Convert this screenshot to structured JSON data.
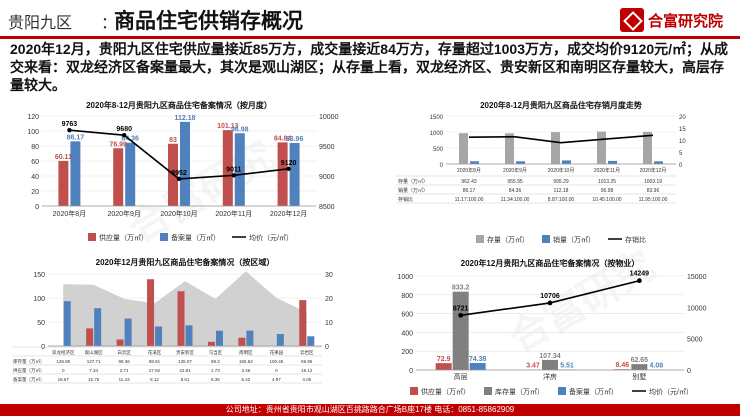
{
  "header": {
    "subtitle": "贵阳九区",
    "separator": "：",
    "title": "商品住宅供销存概况",
    "logo_text": "合富研究院"
  },
  "summary": "2020年12月，贵阳九区住宅供应量接近85万方，成交量接近84万方，存量超过1003万方，成交均价9120元/㎡；从成交来看：双龙经济区备案量最大，其次是观山湖区；从存量上看，双龙经济区、贵安新区和南明区存量较大，高层存量较大。",
  "footer": "公司地址：贵州省贵阳市观山湖区百挑路路合广场B座17楼 电话：0851-85862909",
  "watermark": "合富研究",
  "colors": {
    "red": "#c0504d",
    "blue": "#4f81bd",
    "gray": "#a6a6a6",
    "black": "#000000",
    "accent": "#c00000"
  },
  "chart_data": [
    {
      "type": "bar",
      "title": "2020年8-12月贵阳九区商品住宅备案情况（按月度）",
      "categories": [
        "2020年8月",
        "2020年9月",
        "2020年10月",
        "2020年11月",
        "2020年12月"
      ],
      "series": [
        {
          "name": "供应量（万㎡）",
          "values": [
            60.11,
            76.99,
            83,
            101.13,
            84.84
          ],
          "color": "#c0504d"
        },
        {
          "name": "备案量（万㎡）",
          "values": [
            86.17,
            84.36,
            112.18,
            96.98,
            83.96
          ],
          "color": "#4f81bd"
        },
        {
          "name": "均价（元/㎡）",
          "values": [
            9763,
            9680,
            8952,
            9011,
            9120
          ],
          "type": "line",
          "axis": "right",
          "color": "#000000"
        }
      ],
      "yticks_left": [
        "0",
        "20",
        "40",
        "60",
        "80",
        "100",
        "120"
      ],
      "yticks_right": [
        "8500",
        "9000",
        "9500",
        "10000"
      ],
      "ylim_left": [
        0,
        120
      ],
      "ylim_right": [
        8500,
        10000
      ]
    },
    {
      "type": "bar",
      "title": "2020年8-12月贵阳九区商品住宅存销月度走势",
      "categories": [
        "2020年8月",
        "2020年9月",
        "2020年10月",
        "2020年11月",
        "2020年12月"
      ],
      "series": [
        {
          "name": "存量（万㎡）",
          "values": [
            962.43,
            955.95,
            995.29,
            1013.25,
            1003.19
          ],
          "color": "#a6a6a6"
        },
        {
          "name": "销量（万㎡）",
          "values": [
            86.17,
            84.36,
            112.18,
            96.98,
            83.96
          ],
          "color": "#4f81bd"
        },
        {
          "name": "存销比",
          "values": [
            11.17,
            11.34,
            8.87,
            10.45,
            11.95
          ],
          "type": "line",
          "axis": "right",
          "color": "#000000"
        }
      ],
      "table_rows": [
        {
          "label": "存量（万㎡）",
          "cells": [
            "962.43",
            "955.95",
            "995.29",
            "1013.25",
            "1003.19"
          ]
        },
        {
          "label": "销量（万㎡）",
          "cells": [
            "86.17",
            "84.36",
            "112.18",
            "96.98",
            "83.96"
          ]
        },
        {
          "label": "存销比",
          "cells": [
            "11.17:100.00",
            "11.34:100.00",
            "8.87:100.00",
            "10.45:100.00",
            "11.95:100.00"
          ]
        }
      ],
      "yticks_left": [
        "0",
        "500",
        "1000",
        "1500"
      ],
      "yticks_right": [
        "0",
        "5",
        "10",
        "15",
        "20"
      ],
      "ylim_left": [
        0,
        1500
      ],
      "ylim_right": [
        0,
        20
      ]
    },
    {
      "type": "bar",
      "title": "2020年12月贵阳九区商品住宅备案情况（按区域）",
      "categories": [
        "双龙经济区",
        "观山湖区",
        "白云区",
        "花溪区",
        "贵安新区",
        "乌当区",
        "南明区",
        "花果园",
        "云岩区"
      ],
      "series": [
        {
          "name": "库存量（万㎡）",
          "values": [
            128.88,
            127.71,
            98.36,
            88.81,
            135.07,
            98.3,
            155.62,
            100.46,
            69.96
          ],
          "type": "area",
          "axis": "left",
          "color": "#a6a6a6"
        },
        {
          "name": "供应量（万㎡）",
          "values": [
            0,
            7.34,
            2.71,
            27.82,
            22.81,
            1.73,
            3.46,
            0,
            19.12
          ],
          "axis": "right",
          "color": "#c0504d"
        },
        {
          "name": "备案量（万㎡）",
          "values": [
            18.67,
            15.75,
            11.43,
            8.12,
            8.61,
            6.36,
            6.42,
            4.97,
            4.05
          ],
          "axis": "right",
          "color": "#4f81bd"
        }
      ],
      "table_labels": [
        "库存量（万㎡）",
        "供应量（万㎡）",
        "备案量（万㎡）"
      ],
      "yticks_left": [
        "0",
        "50",
        "100",
        "150"
      ],
      "yticks_right": [
        "0",
        "10",
        "20",
        "30"
      ],
      "ylim_left": [
        0,
        150
      ],
      "ylim_right": [
        0,
        30
      ]
    },
    {
      "type": "bar",
      "title": "2020年12月贵阳九区商品住宅备案情况（按物业）",
      "categories": [
        "高层",
        "洋房",
        "别墅"
      ],
      "series": [
        {
          "name": "供应量（万㎡）",
          "values": [
            72.9,
            3.47,
            8.46
          ],
          "color": "#c0504d"
        },
        {
          "name": "库存量（万㎡）",
          "values": [
            833.2,
            107.34,
            62.65
          ],
          "color": "#808080"
        },
        {
          "name": "备案量（万㎡）",
          "values": [
            74.38,
            5.51,
            4.08
          ],
          "color": "#4f81bd"
        },
        {
          "name": "均价（元/㎡）",
          "values": [
            8721,
            10706,
            14249
          ],
          "type": "line",
          "axis": "right",
          "color": "#000000"
        }
      ],
      "value_labels": {
        "供应量": [
          "72.9",
          "3.47",
          "8.46"
        ],
        "库存量": [
          "833.2",
          "107.34",
          "62.65"
        ],
        "备案量": [
          "74.38",
          "5.51",
          "4.08"
        ],
        "均价": [
          "8721",
          "10706",
          "14249"
        ]
      },
      "yticks_left": [
        "0",
        "200",
        "400",
        "600",
        "800",
        "1000"
      ],
      "yticks_right": [
        "0",
        "5000",
        "10000",
        "15000"
      ],
      "ylim_left": [
        0,
        1000
      ],
      "ylim_right": [
        0,
        15000
      ]
    }
  ]
}
